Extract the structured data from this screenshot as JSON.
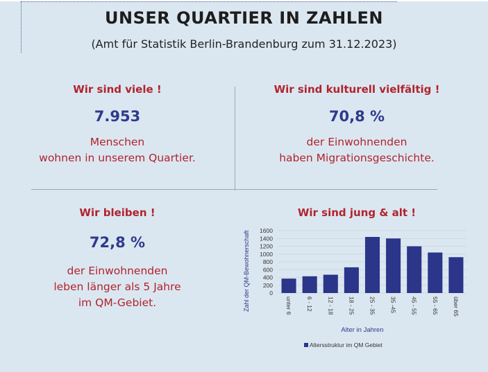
{
  "header": {
    "title": "UNSER QUARTIER IN ZAHLEN",
    "subtitle": "(Amt für Statistik Berlin-Brandenburg zum 31.12.2023)"
  },
  "panels": [
    {
      "heading": "Wir sind viele !",
      "value": "7.953",
      "line1": "Menschen",
      "line2": "wohnen in unserem Quartier."
    },
    {
      "heading": "Wir sind kulturell vielfältig !",
      "value": "70,8 %",
      "line1": "der Einwohnenden",
      "line2": "haben Migrationsgeschichte."
    },
    {
      "heading": "Wir bleiben !",
      "value": "72,8 %",
      "line1": "der Einwohnenden",
      "line2": "leben länger als 5 Jahre",
      "line3": "im QM-Gebiet."
    },
    {
      "heading": "Wir sind jung & alt !"
    }
  ],
  "colors": {
    "heading": "#b1232e",
    "value": "#2e3a8c",
    "bar": "#2b3589",
    "background": "#dbe7f0"
  },
  "chart_data": {
    "type": "bar",
    "categories": [
      "unter 6",
      "6 - 12",
      "12 - 18",
      "18 - 25",
      "25 - 35",
      "35 -45",
      "45 - 55",
      "55 - 65",
      "über 65"
    ],
    "series": [
      {
        "name": "Altersstruktur im QM Gebiet",
        "values": [
          370,
          430,
          470,
          660,
          1440,
          1400,
          1200,
          1040,
          920
        ]
      }
    ],
    "xlabel": "Alter in Jahren",
    "ylabel": "Zahl der QM-Bewohnerschaft",
    "ylim": [
      0,
      1600
    ],
    "yticks": [
      "0",
      "200",
      "400",
      "600",
      "800",
      "1000",
      "1200",
      "1400",
      "1600"
    ],
    "grid": true,
    "legend": "bottom"
  }
}
